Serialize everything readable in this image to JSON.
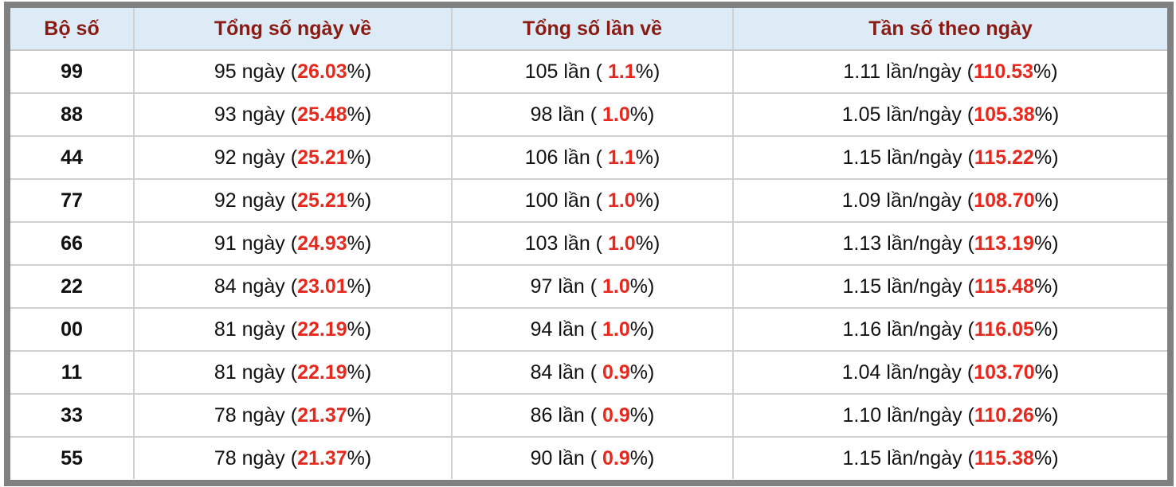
{
  "headers": [
    "Bộ số",
    "Tổng số ngày về",
    "Tổng số lần về",
    "Tần số theo ngày"
  ],
  "colors": {
    "header_text": "#8b1a12",
    "header_bg": "#dcebf5",
    "highlight": "#e8281c",
    "frame": "#808080"
  },
  "rows": [
    {
      "bo_so": "99",
      "ngay": "95 ngày (",
      "ngay_pct": "26.03",
      "lan": "105 lần ( ",
      "lan_pct": "1.1",
      "tan": "1.11 lần/ngày (",
      "tan_pct": "110.53"
    },
    {
      "bo_so": "88",
      "ngay": "93 ngày (",
      "ngay_pct": "25.48",
      "lan": "98 lần ( ",
      "lan_pct": "1.0",
      "tan": "1.05 lần/ngày (",
      "tan_pct": "105.38"
    },
    {
      "bo_so": "44",
      "ngay": "92 ngày (",
      "ngay_pct": "25.21",
      "lan": "106 lần ( ",
      "lan_pct": "1.1",
      "tan": "1.15 lần/ngày (",
      "tan_pct": "115.22"
    },
    {
      "bo_so": "77",
      "ngay": "92 ngày (",
      "ngay_pct": "25.21",
      "lan": "100 lần ( ",
      "lan_pct": "1.0",
      "tan": "1.09 lần/ngày (",
      "tan_pct": "108.70"
    },
    {
      "bo_so": "66",
      "ngay": "91 ngày (",
      "ngay_pct": "24.93",
      "lan": "103 lần ( ",
      "lan_pct": "1.0",
      "tan": "1.13 lần/ngày (",
      "tan_pct": "113.19"
    },
    {
      "bo_so": "22",
      "ngay": "84 ngày (",
      "ngay_pct": "23.01",
      "lan": "97 lần ( ",
      "lan_pct": "1.0",
      "tan": "1.15 lần/ngày (",
      "tan_pct": "115.48"
    },
    {
      "bo_so": "00",
      "ngay": "81 ngày (",
      "ngay_pct": "22.19",
      "lan": "94 lần ( ",
      "lan_pct": "1.0",
      "tan": "1.16 lần/ngày (",
      "tan_pct": "116.05"
    },
    {
      "bo_so": "11",
      "ngay": "81 ngày (",
      "ngay_pct": "22.19",
      "lan": "84 lần ( ",
      "lan_pct": "0.9",
      "tan": "1.04 lần/ngày (",
      "tan_pct": "103.70"
    },
    {
      "bo_so": "33",
      "ngay": "78 ngày (",
      "ngay_pct": "21.37",
      "lan": "86 lần ( ",
      "lan_pct": "0.9",
      "tan": "1.10 lần/ngày (",
      "tan_pct": "110.26"
    },
    {
      "bo_so": "55",
      "ngay": "78 ngày (",
      "ngay_pct": "21.37",
      "lan": "90 lần ( ",
      "lan_pct": "0.9",
      "tan": "1.15 lần/ngày (",
      "tan_pct": "115.38"
    }
  ],
  "pct_suffix": "%)"
}
